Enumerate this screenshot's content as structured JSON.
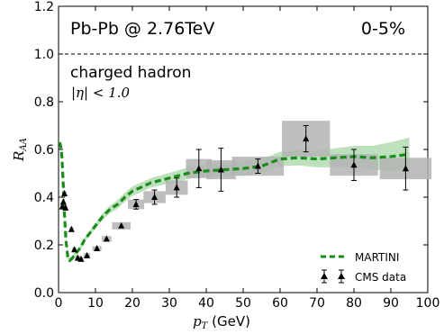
{
  "chart_data": {
    "type": "line",
    "title_left": "Pb-Pb @ 2.76TeV",
    "title_right": "0-5%",
    "annotation": "charged hadron",
    "annotation_sub": "|η| < 1.0",
    "xlabel_var": "p",
    "xlabel_sub": "T",
    "xlabel_unit": " (GeV)",
    "ylabel_var": "R",
    "ylabel_sub": "AA",
    "xlim": [
      0,
      100
    ],
    "ylim": [
      0,
      1.2
    ],
    "xticks": [
      "0",
      "10",
      "20",
      "30",
      "40",
      "50",
      "60",
      "70",
      "80",
      "90",
      "100"
    ],
    "yticks": [
      "0.0",
      "0.2",
      "0.4",
      "0.6",
      "0.8",
      "1.0",
      "1.2"
    ],
    "reference_line": 1.0,
    "legend_position": "bottom-right",
    "colors": {
      "model": "#1a8c1a",
      "band": "#9fd49f",
      "data": "#000000",
      "syst": "#b3b3b3"
    },
    "series": [
      {
        "name": "MARTINI",
        "x": [
          0.3,
          0.8,
          1.2,
          1.6,
          2.0,
          2.5,
          3.0,
          3.5,
          4.0,
          5.0,
          6.0,
          7.0,
          8.0,
          10,
          12,
          14,
          16,
          18,
          20,
          25,
          30,
          35,
          40,
          45,
          50,
          55,
          60,
          65,
          70,
          75,
          80,
          85,
          90,
          95
        ],
        "y": [
          0.63,
          0.6,
          0.48,
          0.33,
          0.22,
          0.15,
          0.135,
          0.14,
          0.15,
          0.17,
          0.19,
          0.22,
          0.24,
          0.28,
          0.32,
          0.35,
          0.37,
          0.4,
          0.425,
          0.46,
          0.48,
          0.5,
          0.51,
          0.515,
          0.52,
          0.53,
          0.56,
          0.565,
          0.56,
          0.565,
          0.57,
          0.565,
          0.57,
          0.58
        ],
        "band": [
          0.01,
          0.01,
          0.01,
          0.01,
          0.01,
          0.01,
          0.01,
          0.01,
          0.01,
          0.01,
          0.01,
          0.01,
          0.01,
          0.012,
          0.014,
          0.016,
          0.018,
          0.02,
          0.02,
          0.02,
          0.022,
          0.024,
          0.026,
          0.028,
          0.03,
          0.03,
          0.03,
          0.032,
          0.035,
          0.04,
          0.045,
          0.05,
          0.06,
          0.07
        ]
      },
      {
        "name": "CMS data",
        "x": [
          1.0,
          1.3,
          1.6,
          1.9,
          3.5,
          4.3,
          5.2,
          6.1,
          7.7,
          10.4,
          13.0,
          17.0,
          21.0,
          26.0,
          32.0,
          38.0,
          44.0,
          54.0,
          67.0,
          80.0,
          94.0
        ],
        "y": [
          0.36,
          0.38,
          0.415,
          0.355,
          0.265,
          0.18,
          0.145,
          0.14,
          0.155,
          0.185,
          0.225,
          0.28,
          0.37,
          0.4,
          0.44,
          0.52,
          0.515,
          0.53,
          0.645,
          0.535,
          0.52
        ],
        "yerr": [
          0.008,
          0.008,
          0.01,
          0.008,
          0.008,
          0.006,
          0.005,
          0.005,
          0.005,
          0.006,
          0.008,
          0.01,
          0.02,
          0.03,
          0.04,
          0.08,
          0.09,
          0.03,
          0.055,
          0.065,
          0.09
        ],
        "syst_halfwidth": [
          0.4,
          0.4,
          0.4,
          0.4,
          0.5,
          0.6,
          0.6,
          0.6,
          0.9,
          1.2,
          1.3,
          2.5,
          2.2,
          3.0,
          3.0,
          3.5,
          4.0,
          7.0,
          6.5,
          6.5,
          7.0
        ],
        "syst": [
          0.01,
          0.012,
          0.012,
          0.01,
          0.01,
          0.01,
          0.01,
          0.01,
          0.01,
          0.01,
          0.012,
          0.015,
          0.02,
          0.025,
          0.03,
          0.04,
          0.04,
          0.04,
          0.075,
          0.045,
          0.045
        ]
      }
    ]
  }
}
